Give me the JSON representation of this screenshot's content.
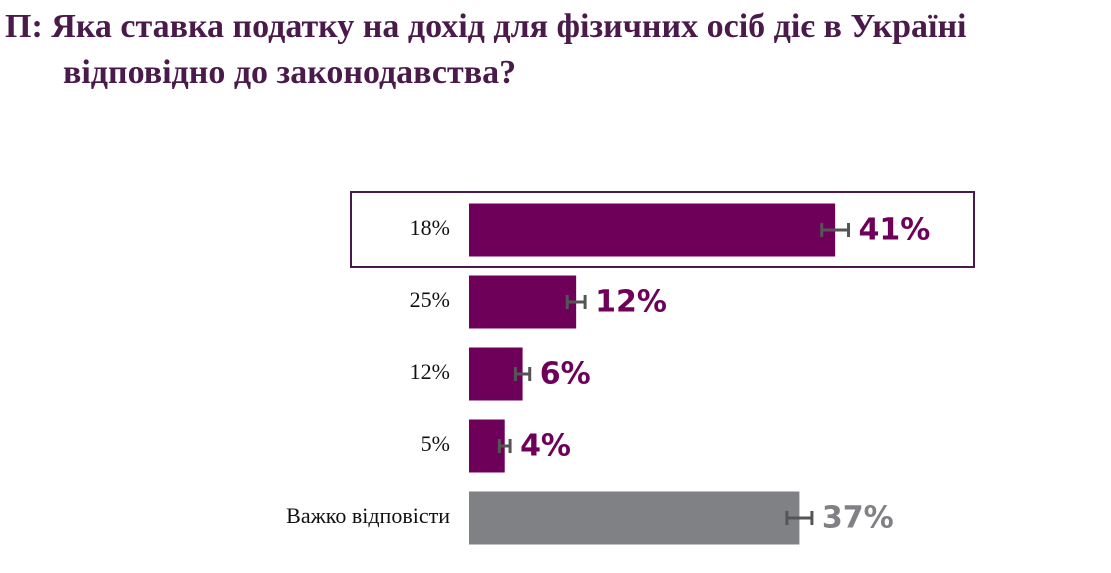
{
  "chart_data": {
    "type": "bar",
    "title": "П: Яка ставка податку на дохід для фізичних осіб діє в Україні відповідно до законодавства?",
    "categories": [
      "18%",
      "25%",
      "12%",
      "5%",
      "Важко відповісти"
    ],
    "values": [
      41,
      12,
      6,
      4,
      37
    ],
    "value_labels": [
      "41%",
      "12%",
      "6%",
      "4%",
      "37%"
    ],
    "errors": [
      1.5,
      1,
      0.8,
      0.6,
      1.4
    ],
    "colors": [
      "#6e0059",
      "#6e0059",
      "#6e0059",
      "#6e0059",
      "#808184"
    ]
  }
}
